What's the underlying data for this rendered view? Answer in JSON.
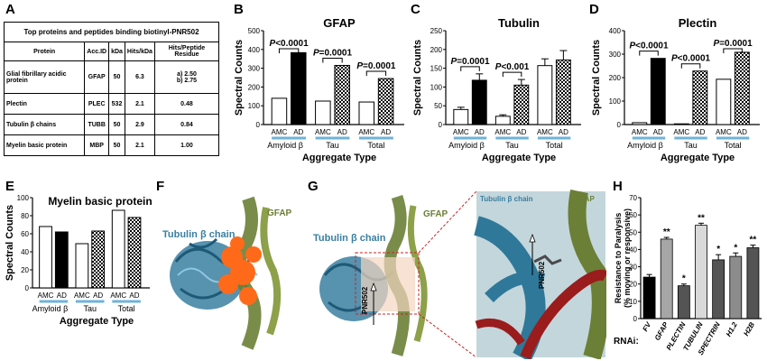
{
  "panels": {
    "A": "A",
    "B": "B",
    "C": "C",
    "D": "D",
    "E": "E",
    "F": "F",
    "G": "G",
    "H": "H"
  },
  "table": {
    "title": "Top proteins and peptides binding biotinyl-PNR502",
    "headers": [
      "Protein",
      "Acc.ID",
      "kDa",
      "Hits/kDa",
      "Hits/Peptide Residue"
    ],
    "rows": [
      [
        "Glial fibrillary acidic protein",
        "GFAP",
        "50",
        "6.3",
        "a) 2.50\nb) 2.75"
      ],
      [
        "Plectin",
        "PLEC",
        "532",
        "2.1",
        "0.48"
      ],
      [
        "Tubulin β chains",
        "TUBB",
        "50",
        "2.9",
        "0.84"
      ],
      [
        "Myelin basic protein",
        "MBP",
        "50",
        "2.1",
        "1.00"
      ]
    ]
  },
  "colors": {
    "ad_solid": "#000000",
    "amc": "#ffffff",
    "underline": "#6fb3d9",
    "tubulin": "#3a7fa0",
    "gfap": "#6b7f36",
    "orange": "#ff6a1a",
    "red": "#9a1c1c"
  },
  "chart_data": [
    {
      "id": "B",
      "type": "bar",
      "title": "GFAP",
      "ylabel": "Spectral Counts",
      "xlabel": "Aggregate Type",
      "ylim": [
        0,
        500
      ],
      "yticks": [
        0,
        100,
        200,
        300,
        400,
        500
      ],
      "groups": [
        "Amyloid β",
        "Tau",
        "Total"
      ],
      "bars": [
        {
          "label": "AMC",
          "value": 140,
          "style": "white"
        },
        {
          "label": "AD",
          "value": 383,
          "style": "black"
        },
        {
          "label": "AMC",
          "value": 125,
          "style": "white"
        },
        {
          "label": "AD",
          "value": 315,
          "style": "check"
        },
        {
          "label": "AMC",
          "value": 120,
          "style": "white"
        },
        {
          "label": "AD",
          "value": 245,
          "style": "check"
        }
      ],
      "annotations": [
        "P<0.0001",
        "P=0.0001",
        "P=0.0001"
      ]
    },
    {
      "id": "C",
      "type": "bar",
      "title": "Tubulin",
      "ylabel": "Spectral Counts",
      "xlabel": "Aggregate Type",
      "ylim": [
        0,
        250
      ],
      "yticks": [
        0,
        50,
        100,
        150,
        200,
        250
      ],
      "groups": [
        "Amyloid β",
        "Tau",
        "Total"
      ],
      "bars": [
        {
          "label": "AMC",
          "value": 40,
          "err": 6,
          "style": "white"
        },
        {
          "label": "AD",
          "value": 118,
          "err": 17,
          "style": "black"
        },
        {
          "label": "AMC",
          "value": 22,
          "err": 4,
          "style": "white"
        },
        {
          "label": "AD",
          "value": 105,
          "err": 15,
          "style": "check"
        },
        {
          "label": "AMC",
          "value": 157,
          "err": 18,
          "style": "white"
        },
        {
          "label": "AD",
          "value": 172,
          "err": 25,
          "style": "check"
        }
      ],
      "annotations": [
        "P=0.0001",
        "P<0.001"
      ]
    },
    {
      "id": "D",
      "type": "bar",
      "title": "Plectin",
      "ylabel": "Spectral Counts",
      "xlabel": "Aggregate Type",
      "ylim": [
        0,
        400
      ],
      "yticks": [
        0,
        100,
        200,
        300,
        400
      ],
      "groups": [
        "Amyloid β",
        "Tau",
        "Total"
      ],
      "bars": [
        {
          "label": "AMC",
          "value": 8,
          "style": "white"
        },
        {
          "label": "AD",
          "value": 282,
          "style": "black"
        },
        {
          "label": "AMC",
          "value": 3,
          "style": "white"
        },
        {
          "label": "AD",
          "value": 228,
          "style": "check"
        },
        {
          "label": "AMC",
          "value": 193,
          "style": "white"
        },
        {
          "label": "AD",
          "value": 308,
          "style": "check"
        }
      ],
      "annotations": [
        "P<0.0001",
        "P<0.0001",
        "P=0.0001"
      ]
    },
    {
      "id": "E",
      "type": "bar",
      "title": "Myelin basic protein",
      "ylabel": "Spectral Counts",
      "xlabel": "Aggregate Type",
      "ylim": [
        0,
        100
      ],
      "yticks": [
        0,
        20,
        40,
        60,
        80,
        100
      ],
      "groups": [
        "Amyloid β",
        "Tau",
        "Total"
      ],
      "bars": [
        {
          "label": "AMC",
          "value": 68,
          "style": "white"
        },
        {
          "label": "AD",
          "value": 62,
          "style": "black"
        },
        {
          "label": "AMC",
          "value": 49,
          "style": "white"
        },
        {
          "label": "AD",
          "value": 63,
          "style": "check"
        },
        {
          "label": "AMC",
          "value": 86,
          "style": "white"
        },
        {
          "label": "AD",
          "value": 78,
          "style": "check"
        }
      ],
      "annotations": []
    },
    {
      "id": "H",
      "type": "bar",
      "ylabel": "Resistance to Paralysis\n(% moving or responsive)",
      "xlabel_prefix": "RNAi:",
      "ylim": [
        0,
        70
      ],
      "yticks": [
        0,
        10,
        20,
        30,
        40,
        50,
        60,
        70
      ],
      "bars": [
        {
          "label": "FV",
          "value": 24,
          "err": 1.5,
          "color": "#000000",
          "sig": ""
        },
        {
          "label": "GFAP",
          "value": 46,
          "err": 1,
          "color": "#a6a6a6",
          "sig": "**"
        },
        {
          "label": "PLECTIN",
          "value": 19,
          "err": 1,
          "color": "#545454",
          "sig": "*"
        },
        {
          "label": "TUBULIN",
          "value": 54,
          "err": 1.2,
          "color": "#d9d9d9",
          "sig": "**"
        },
        {
          "label": "SPECTRIN",
          "value": 34,
          "err": 3,
          "color": "#545454",
          "sig": "*"
        },
        {
          "label": "H1.2",
          "value": 36,
          "err": 2,
          "color": "#8c8c8c",
          "sig": "*"
        },
        {
          "label": "H2B",
          "value": 41,
          "err": 1.5,
          "color": "#545454",
          "sig": "**"
        }
      ]
    }
  ],
  "structures": {
    "F": {
      "tubulin_label": "Tubulin β chain",
      "gfap_label": "GFAP"
    },
    "G": {
      "tubulin_label": "Tubulin β chain",
      "gfap_label": "GFAP",
      "ligand_label": "PNR502",
      "zoom_tubulin_label": "Tubulin β chain",
      "zoom_gfap_label": "GFAP",
      "zoom_ligand_label": "PNR502"
    }
  }
}
